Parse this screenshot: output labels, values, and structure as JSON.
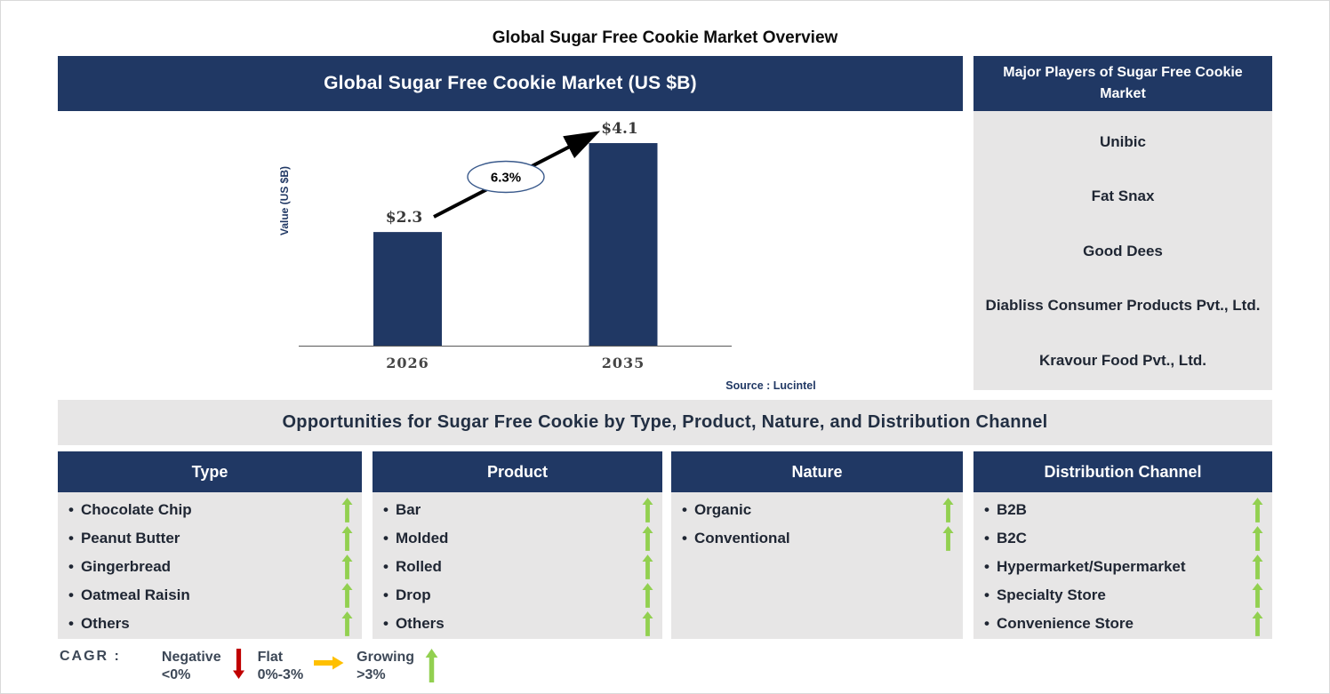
{
  "page": {
    "title": "Global Sugar Free Cookie Market Overview"
  },
  "colors": {
    "navy": "#203864",
    "panel_gray": "#E7E6E6",
    "green": "#92D050",
    "red": "#C00000",
    "yellow": "#FFC000"
  },
  "chart_panel": {
    "header": "Global Sugar Free Cookie Market (US $B)",
    "source": "Source : Lucintel"
  },
  "chart_data": {
    "type": "bar",
    "title": "Global Sugar Free Cookie Market (US $B)",
    "categories": [
      "2026",
      "2035"
    ],
    "values": [
      2.3,
      4.1
    ],
    "value_labels": [
      "$2.3",
      "$4.1"
    ],
    "ylabel": "Value (US $B)",
    "xlabel": "",
    "cagr_label": "6.3%",
    "bar_color": "#203864",
    "grid": false,
    "source": "Source : Lucintel"
  },
  "players_panel": {
    "header": "Major Players of Sugar Free Cookie Market",
    "items": [
      "Unibic",
      "Fat Snax",
      "Good Dees",
      "Diabliss Consumer Products Pvt., Ltd.",
      "Kravour Food Pvt., Ltd."
    ]
  },
  "opportunities": {
    "banner": "Opportunities for Sugar Free Cookie by Type, Product, Nature, and Distribution Channel",
    "columns": [
      {
        "header": "Type",
        "items": [
          "Chocolate Chip",
          "Peanut Butter",
          "Gingerbread",
          "Oatmeal Raisin",
          "Others"
        ]
      },
      {
        "header": "Product",
        "items": [
          "Bar",
          "Molded",
          "Rolled",
          "Drop",
          "Others"
        ]
      },
      {
        "header": "Nature",
        "items": [
          "Organic",
          "Conventional"
        ]
      },
      {
        "header": "Distribution Channel",
        "items": [
          "B2B",
          "B2C",
          "Hypermarket/Supermarket",
          "Specialty Store",
          "Convenience Store"
        ]
      }
    ],
    "item_trend": "growing"
  },
  "legend": {
    "label": "CAGR :",
    "entries": [
      {
        "name": "Negative",
        "range": "<0%",
        "trend": "down",
        "color": "#C00000"
      },
      {
        "name": "Flat",
        "range": "0%-3%",
        "trend": "right",
        "color": "#FFC000"
      },
      {
        "name": "Growing",
        "range": ">3%",
        "trend": "up",
        "color": "#92D050"
      }
    ]
  }
}
